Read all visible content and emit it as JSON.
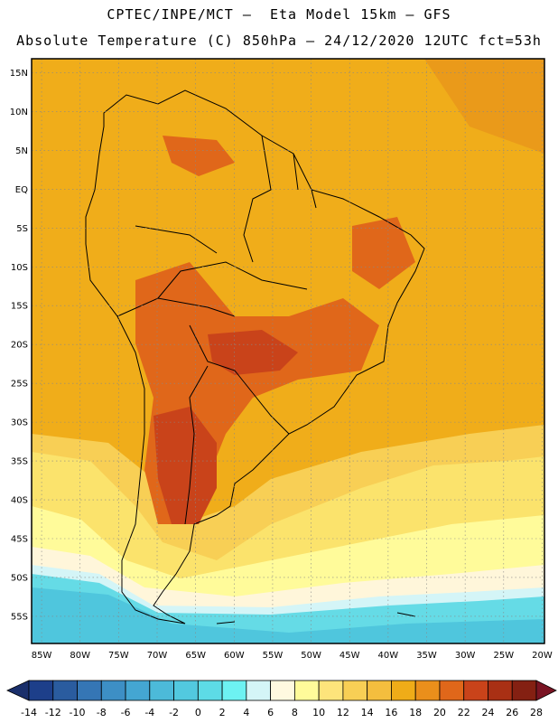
{
  "title_line1": "CPTEC/INPE/MCT –  Eta Model 15km – GFS",
  "title_line2": "Absolute Temperature (C) 850hPa – 24/12/2020 12UTC fct=53h",
  "lat_labels": [
    "15N",
    "10N",
    "5N",
    "EQ",
    "5S",
    "10S",
    "15S",
    "20S",
    "25S",
    "30S",
    "35S",
    "40S",
    "45S",
    "50S",
    "55S"
  ],
  "lat_values": [
    15,
    10,
    5,
    0,
    -5,
    -10,
    -15,
    -20,
    -25,
    -30,
    -35,
    -40,
    -45,
    -50,
    -55
  ],
  "lon_labels": [
    "85W",
    "80W",
    "75W",
    "70W",
    "65W",
    "60W",
    "55W",
    "50W",
    "45W",
    "40W",
    "35W",
    "30W",
    "25W",
    "20W"
  ],
  "lon_values": [
    -85,
    -80,
    -75,
    -70,
    -65,
    -60,
    -55,
    -50,
    -45,
    -40,
    -35,
    -30,
    -25,
    -20
  ],
  "colorbar": {
    "labels": [
      "-14",
      "-12",
      "-10",
      "-8",
      "-6",
      "-4",
      "-2",
      "0",
      "2",
      "4",
      "6",
      "8",
      "10",
      "12",
      "14",
      "16",
      "18",
      "20",
      "22",
      "24",
      "26",
      "28"
    ],
    "colors": [
      "#1d3f8a",
      "#2a5c9f",
      "#3576b5",
      "#3d8fc5",
      "#44a6d2",
      "#4cbad9",
      "#52c9df",
      "#5ddbe6",
      "#6df2f2",
      "#d4f5f7",
      "#fff9e0",
      "#fffb9a",
      "#fde47b",
      "#f8cf55",
      "#f4be3e",
      "#efac18",
      "#ea8f1b",
      "#e0671a",
      "#c9431a",
      "#a93014",
      "#842012"
    ],
    "under_color": "#1a2f6b",
    "over_color": "#7a1423"
  },
  "colors": {
    "ocean_south": "#4fc6dd",
    "ocean_cold": "#65dbe6",
    "ocean_pale": "#fff6da",
    "ocean_warm": "#fbe36c",
    "base_orange": "#f0ad1a",
    "hot": "#c9431a",
    "very_hot": "#a93014"
  }
}
